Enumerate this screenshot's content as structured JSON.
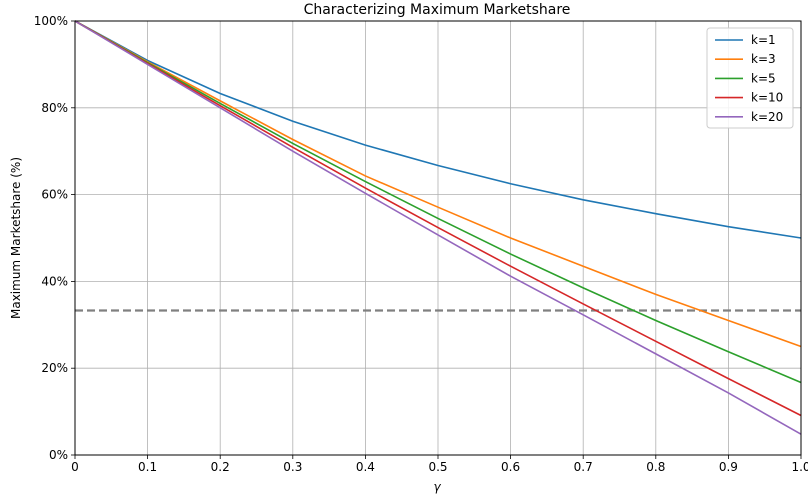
{
  "chart_data": {
    "type": "line",
    "title": "Characterizing Maximum Marketshare",
    "xlabel": "γ",
    "ylabel": "Maximum Marketshare (%)",
    "xlim": [
      0,
      1
    ],
    "ylim": [
      0,
      100
    ],
    "x_ticks": [
      0,
      0.1,
      0.2,
      0.3,
      0.4,
      0.5,
      0.6,
      0.7,
      0.8,
      0.9,
      1.0
    ],
    "x_tick_labels": [
      "0",
      "0.1",
      "0.2",
      "0.3",
      "0.4",
      "0.5",
      "0.6",
      "0.7",
      "0.8",
      "0.9",
      "1.0"
    ],
    "y_ticks": [
      0,
      20,
      40,
      60,
      80,
      100
    ],
    "y_tick_labels": [
      "0%",
      "20%",
      "40%",
      "60%",
      "80%",
      "100%"
    ],
    "grid": true,
    "legend_position": "top-right",
    "x": [
      0,
      0.1,
      0.2,
      0.3,
      0.4,
      0.5,
      0.6,
      0.7,
      0.8,
      0.9,
      1.0
    ],
    "series": [
      {
        "name": "k=1",
        "color": "#1f77b4",
        "values": [
          100,
          90.9,
          83.3,
          76.9,
          71.4,
          66.7,
          62.5,
          58.8,
          55.6,
          52.6,
          50.0
        ]
      },
      {
        "name": "k=3",
        "color": "#ff7f0e",
        "values": [
          100,
          90.6,
          81.6,
          72.7,
          64.3,
          57.1,
          50.0,
          43.5,
          37.0,
          31.0,
          25.0
        ]
      },
      {
        "name": "k=5",
        "color": "#2ca02c",
        "values": [
          100,
          90.4,
          81.0,
          71.8,
          63.0,
          54.5,
          46.3,
          38.5,
          31.0,
          23.8,
          16.7
        ]
      },
      {
        "name": "k=10",
        "color": "#d62728",
        "values": [
          100,
          90.2,
          80.5,
          70.9,
          61.5,
          52.4,
          43.5,
          34.8,
          26.2,
          17.6,
          9.1
        ]
      },
      {
        "name": "k=20",
        "color": "#9467bd",
        "values": [
          100,
          90.0,
          80.0,
          70.0,
          60.3,
          50.7,
          41.2,
          32.3,
          23.3,
          14.3,
          4.8
        ]
      }
    ],
    "reference_line": {
      "y": 33.3,
      "style": "dashed",
      "color": "#808080"
    }
  }
}
